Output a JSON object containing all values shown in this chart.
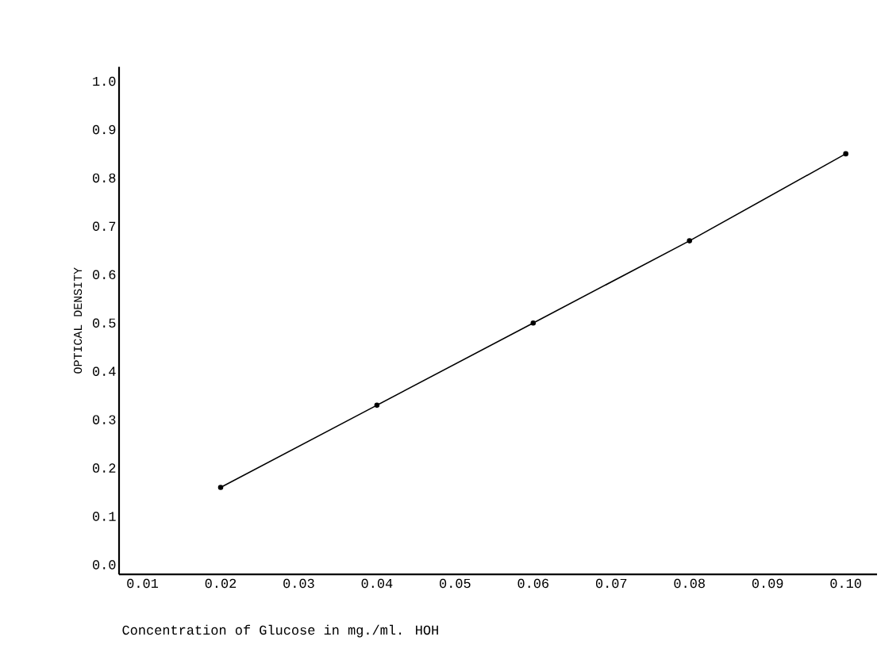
{
  "chart_data": {
    "type": "line",
    "xlabel": "Concentration of Glucose in mg./ml. HOH",
    "ylabel": "OPTICAL DENSITY",
    "x": [
      0.02,
      0.04,
      0.06,
      0.08,
      0.1
    ],
    "series": [
      {
        "color": "#000000",
        "values": [
          0.16,
          0.33,
          0.5,
          0.67,
          0.85
        ]
      }
    ],
    "xlim": [
      0.007,
      0.104
    ],
    "ylim": [
      -0.02,
      1.03
    ],
    "xticks": [
      {
        "value": 0.01,
        "label": "0.01"
      },
      {
        "value": 0.02,
        "label": "0.02"
      },
      {
        "value": 0.03,
        "label": "0.03"
      },
      {
        "value": 0.04,
        "label": "0.04"
      },
      {
        "value": 0.05,
        "label": "0.05"
      },
      {
        "value": 0.06,
        "label": "0.06"
      },
      {
        "value": 0.07,
        "label": "0.07"
      },
      {
        "value": 0.08,
        "label": "0.08"
      },
      {
        "value": 0.09,
        "label": "0.09"
      },
      {
        "value": 0.1,
        "label": "0.10"
      }
    ],
    "yticks": [
      {
        "value": 0.0,
        "label": "0.0"
      },
      {
        "value": 0.1,
        "label": "0.1"
      },
      {
        "value": 0.2,
        "label": "0.2"
      },
      {
        "value": 0.3,
        "label": "0.3"
      },
      {
        "value": 0.4,
        "label": "0.4"
      },
      {
        "value": 0.5,
        "label": "0.5"
      },
      {
        "value": 0.6,
        "label": "0.6"
      },
      {
        "value": 0.7,
        "label": "0.7"
      },
      {
        "value": 0.8,
        "label": "0.8"
      },
      {
        "value": 0.9,
        "label": "0.9"
      },
      {
        "value": 1.0,
        "label": "1.0"
      }
    ],
    "grid": false,
    "marker": "circle",
    "line_style": "solid"
  }
}
